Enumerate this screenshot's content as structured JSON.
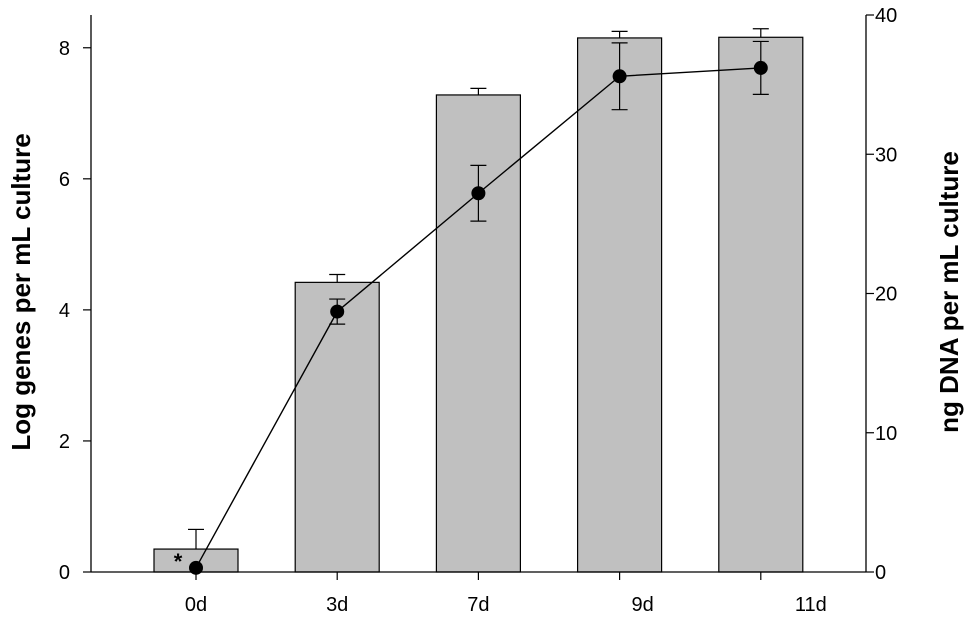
{
  "chart_data": {
    "type": "bar",
    "categories": [
      "0d",
      "3d",
      "7d",
      "9d",
      "11d"
    ],
    "bar_series": {
      "axis": "left",
      "values": [
        0.35,
        4.42,
        7.28,
        8.15,
        8.16
      ],
      "errors": [
        0.3,
        0.12,
        0.1,
        0.1,
        0.13
      ],
      "color": "#c0c0c0"
    },
    "line_series": {
      "axis": "right",
      "values": [
        0.3,
        18.7,
        27.2,
        35.6,
        36.2
      ],
      "errors": [
        0.0,
        0.9,
        2.0,
        2.4,
        1.9
      ],
      "color": "#000000"
    },
    "ylabel": "Log genes per mL culture",
    "y2label": "ng DNA per mL culture",
    "xlabel": "",
    "ylim": [
      0,
      8.5
    ],
    "y2lim": [
      0,
      40
    ],
    "yticks": [
      0,
      2,
      4,
      6,
      8
    ],
    "y2ticks": [
      0,
      10,
      20,
      30,
      40
    ],
    "annotations": [
      {
        "category": "0d",
        "text": "*"
      }
    ],
    "grid": false,
    "legend": "none"
  }
}
